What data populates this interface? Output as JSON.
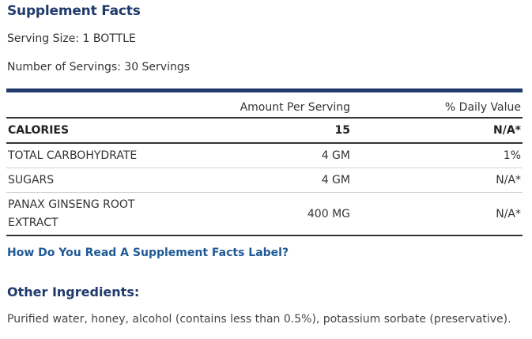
{
  "title": "Supplement Facts",
  "serving_size": "Serving Size: 1 BOTTLE",
  "number_of_servings": "Number of Servings: 30 Servings",
  "table": {
    "headers": {
      "name": "",
      "amount": "Amount Per Serving",
      "daily_value": "% Daily Value"
    },
    "rows": [
      {
        "name": "CALORIES",
        "amount": "15",
        "daily_value": "N/A*"
      },
      {
        "name": "TOTAL CARBOHYDRATE",
        "amount": "4 GM",
        "daily_value": "1%"
      },
      {
        "name": "SUGARS",
        "amount": "4 GM",
        "daily_value": "N/A*"
      },
      {
        "name": "PANAX GINSENG ROOT EXTRACT",
        "amount": "400 MG",
        "daily_value": "N/A*"
      }
    ]
  },
  "link_text": "How Do You Read A Supplement Facts Label?",
  "other_ingredients": {
    "heading": "Other Ingredients:",
    "text": "Purified water, honey, alcohol (contains less than 0.5%), potassium sorbate (preservative)."
  },
  "colors": {
    "heading": "#1f3a6b",
    "link": "#1f5a96",
    "text": "#333333"
  }
}
